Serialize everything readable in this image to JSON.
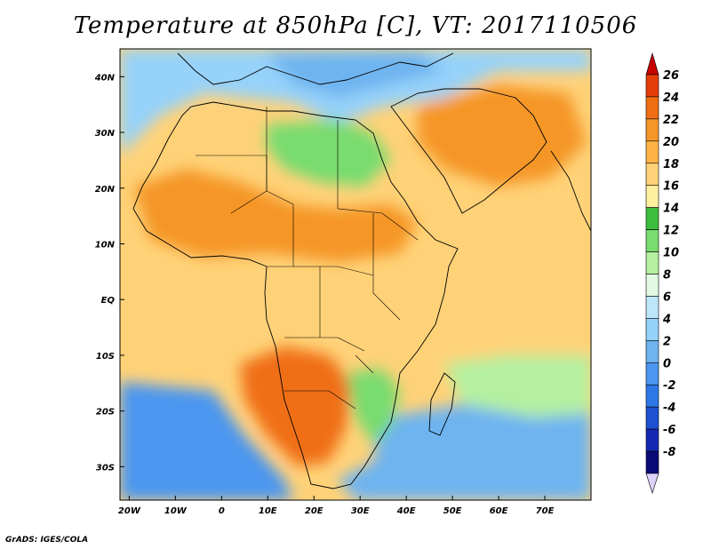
{
  "title": "Temperature at 850hPa [C], VT: 2017110506",
  "credit": "GrADS: IGES/COLA",
  "map": {
    "lon_range": [
      -22,
      80
    ],
    "lat_range": [
      -36,
      45
    ],
    "lat_ticks": [
      {
        "value": 40,
        "label": "40N"
      },
      {
        "value": 30,
        "label": "30N"
      },
      {
        "value": 20,
        "label": "20N"
      },
      {
        "value": 10,
        "label": "10N"
      },
      {
        "value": 0,
        "label": "EQ"
      },
      {
        "value": -10,
        "label": "10S"
      },
      {
        "value": -20,
        "label": "20S"
      },
      {
        "value": -30,
        "label": "30S"
      }
    ],
    "lon_ticks": [
      {
        "value": -20,
        "label": "20W"
      },
      {
        "value": -10,
        "label": "10W"
      },
      {
        "value": 0,
        "label": "0"
      },
      {
        "value": 10,
        "label": "10E"
      },
      {
        "value": 20,
        "label": "20E"
      },
      {
        "value": 30,
        "label": "30E"
      },
      {
        "value": 40,
        "label": "40E"
      },
      {
        "value": 50,
        "label": "50E"
      },
      {
        "value": 60,
        "label": "60E"
      },
      {
        "value": 70,
        "label": "70E"
      }
    ]
  },
  "colorbar": {
    "levels": [
      {
        "value": -8,
        "label": "-8",
        "color": "#0a0a78"
      },
      {
        "value": -6,
        "label": "-6",
        "color": "#1428b4"
      },
      {
        "value": -4,
        "label": "-4",
        "color": "#1e50d2"
      },
      {
        "value": -2,
        "label": "-2",
        "color": "#2d78e6"
      },
      {
        "value": 0,
        "label": "0",
        "color": "#4b96f0"
      },
      {
        "value": 2,
        "label": "2",
        "color": "#6eb4f0"
      },
      {
        "value": 4,
        "label": "4",
        "color": "#96d2fa"
      },
      {
        "value": 6,
        "label": "6",
        "color": "#bee6fa"
      },
      {
        "value": 8,
        "label": "8",
        "color": "#e1fae1"
      },
      {
        "value": 10,
        "label": "10",
        "color": "#b4f0a0"
      },
      {
        "value": 12,
        "label": "12",
        "color": "#78dc6e"
      },
      {
        "value": 14,
        "label": "14",
        "color": "#3cbe3c"
      },
      {
        "value": 16,
        "label": "16",
        "color": "#fff0a0"
      },
      {
        "value": 18,
        "label": "18",
        "color": "#ffd278"
      },
      {
        "value": 20,
        "label": "20",
        "color": "#ffb446"
      },
      {
        "value": 22,
        "label": "22",
        "color": "#f59628"
      },
      {
        "value": 24,
        "label": "24",
        "color": "#f06e14"
      },
      {
        "value": 26,
        "label": "26",
        "color": "#e63c0a"
      }
    ],
    "under_color": "#dcd2fa",
    "over_color": "#c80000"
  },
  "field_regions": [
    {
      "name": "ocean-south",
      "color": "#4b96f0"
    },
    {
      "name": "ocean-southeast",
      "color": "#6eb4f0"
    },
    {
      "name": "mediterranean",
      "color": "#6eb4f0"
    },
    {
      "name": "sahara-green",
      "color": "#78dc6e"
    },
    {
      "name": "equatorial-warm",
      "color": "#ffd278"
    },
    {
      "name": "sahel-hot",
      "color": "#f59628"
    },
    {
      "name": "kalahari-hot",
      "color": "#f06e14"
    },
    {
      "name": "arabia-hot",
      "color": "#f59628"
    }
  ]
}
